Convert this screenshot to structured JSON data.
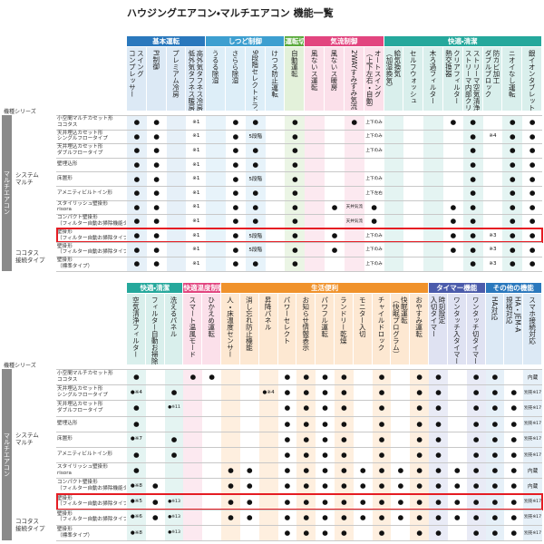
{
  "title": "ハウジングエアコン・マルチエアコン 機能一覧",
  "tables": [
    {
      "series_label": "機種シリーズ",
      "category": "マルチエアコン",
      "column_groups": [
        {
          "label": "基本運転",
          "color": "#2a78bd",
          "light": "#dce9f5",
          "columns": [
            "スイング\nコンプレッサー",
            "PI制御",
            "プレミアム冷房",
            "高外気タフネス冷房\n低外気タフネス暖房"
          ]
        },
        {
          "label": "しつど制御",
          "color": "#3d9fd0",
          "light": "#ddeef8",
          "columns": [
            "うるる除湿",
            "さらら除湿",
            "9段階セレクトドライ",
            "けつろ防止運転"
          ]
        },
        {
          "label": "運転切替",
          "color": "#5aaa3c",
          "light": "#e3f1da",
          "columns": [
            "自動運転"
          ]
        },
        {
          "label": "気流制御",
          "color": "#e2457f",
          "light": "#fbe0ea",
          "columns": [
            "風ないス運転",
            "風ないス暖房",
            "2WAYすみずみ気流",
            "オートスイング\n（上下左右・自動）"
          ]
        },
        {
          "label": "快適・清潔",
          "color": "#25a89c",
          "light": "#d9efec",
          "columns": [
            "給気換気\n（加湿換気）",
            "セルフウォッシュ",
            "木ろ過フィルター",
            "クリアフィルター\n熱交換器",
            "ストリーマ空気清浄\nストリーマ内部クリーン",
            "防カビ加工\nダブルブロック",
            "ニオイなし運転",
            "銀イオンタブレット"
          ]
        }
      ],
      "groups": [
        {
          "label": "システム\nマルチ",
          "rows": [
            {
              "label": "小空間マルチカセット形\nココタス",
              "cells": [
                "●",
                "●",
                null,
                "※1",
                null,
                "●",
                "●",
                null,
                "●",
                null,
                null,
                "●",
                "上下のみ",
                null,
                null,
                null,
                "●",
                "●",
                null,
                "●",
                "●"
              ]
            },
            {
              "label": "天井埋込カセット形\nシングルフロータイプ",
              "cells": [
                "●",
                "●",
                null,
                "※1",
                null,
                "●",
                "5段階",
                null,
                "●",
                null,
                null,
                null,
                "上下のみ",
                null,
                null,
                null,
                null,
                "●",
                "※4",
                "●",
                "●"
              ]
            },
            {
              "label": "天井埋込カセット形\nダブルフロータイプ",
              "cells": [
                "●",
                "●",
                null,
                "※1",
                null,
                "●",
                "●",
                null,
                "●",
                null,
                null,
                null,
                "上下のみ",
                null,
                null,
                null,
                null,
                "●",
                null,
                "●",
                "●"
              ]
            },
            {
              "label": "壁埋込形",
              "cells": [
                "●",
                "●",
                null,
                "※1",
                null,
                "●",
                "●",
                null,
                "●",
                null,
                null,
                null,
                null,
                null,
                null,
                null,
                null,
                "●",
                null,
                "●",
                "●"
              ]
            },
            {
              "label": "床置形",
              "cells": [
                "●",
                "●",
                null,
                "※1",
                null,
                "●",
                "5段階",
                null,
                "●",
                null,
                null,
                null,
                "上下のみ",
                null,
                null,
                null,
                null,
                "●",
                null,
                "●",
                "●"
              ]
            },
            {
              "label": "アメニティビルトイン形",
              "cells": [
                "●",
                "●",
                null,
                "※1",
                null,
                "●",
                "●",
                null,
                "●",
                null,
                null,
                null,
                "上下左右",
                null,
                null,
                null,
                null,
                "●",
                null,
                "●",
                "●"
              ]
            },
            {
              "label": "スタイリッシュ壁掛形\nrisora",
              "cells": [
                "●",
                "●",
                null,
                "※1",
                null,
                "●",
                "●",
                null,
                "●",
                null,
                "●",
                "天井気流",
                "●",
                null,
                null,
                null,
                "●",
                "●",
                null,
                "●",
                "●"
              ]
            },
            {
              "label": "コンパクト壁掛形\n（フィルター自動お掃除機能タイプ）",
              "cells": [
                "●",
                "●",
                null,
                "※1",
                null,
                "●",
                "●",
                null,
                "●",
                null,
                null,
                "天井気流",
                "●",
                null,
                null,
                null,
                "●",
                "●",
                null,
                "●",
                "●"
              ]
            },
            {
              "label": "壁掛形\n（フィルター自動お掃除タイプ）",
              "highlighted": true,
              "cells": [
                "●",
                "●",
                null,
                "※1",
                null,
                "●",
                "5段階",
                null,
                "●",
                null,
                "●",
                null,
                "上下のみ",
                null,
                null,
                null,
                "●",
                "●",
                "※3",
                "●",
                "●"
              ]
            }
          ]
        },
        {
          "label": "ココタス\n接続タイプ",
          "rows": [
            {
              "label": "壁掛形\n（フィルター自動お掃除タイプ）",
              "cells": [
                "●",
                "●",
                null,
                "※1",
                null,
                "●",
                "5段階",
                null,
                "●",
                null,
                "●",
                null,
                "上下のみ",
                null,
                null,
                null,
                "●",
                "●",
                "※3",
                "●",
                "●"
              ]
            },
            {
              "label": "壁掛形\n（標準タイプ）",
              "cells": [
                "●",
                "●",
                null,
                "※1",
                null,
                "●",
                "●",
                null,
                "●",
                null,
                null,
                null,
                "上下のみ",
                null,
                null,
                null,
                null,
                "●",
                "※3",
                "●",
                "●"
              ]
            }
          ]
        }
      ]
    },
    {
      "series_label": "機種シリーズ",
      "category": "マルチエアコン",
      "column_groups": [
        {
          "label": "快適・清潔",
          "color": "#25a89c",
          "light": "#d9efec",
          "columns": [
            "空気清浄フィルター",
            "フィルター自動お掃除",
            "洗えるパネル"
          ]
        },
        {
          "label": "快適温度制御",
          "color": "#e2457f",
          "light": "#fbe0ea",
          "columns": [
            "スマート温風モード",
            "ひかえめ運転"
          ]
        },
        {
          "label": "生活便利",
          "color": "#f0922b",
          "light": "#fde8d2",
          "columns": [
            "人・床温度センサー",
            "消し忘れ防止機能",
            "昇降パネル",
            "パワーセレクト",
            "お知らせ情報表示",
            "パワフル運転",
            "ランドリー乾燥",
            "モニター入切",
            "チャイルドロック",
            "快眠運転\n（快眠プログラム）",
            "おやすみ運転"
          ]
        },
        {
          "label": "タイマー機能",
          "color": "#4b5bab",
          "light": "#dfe2f2",
          "columns": [
            "時刻設定\n入切タイマー",
            "ワンタッチ入タイマー",
            "ワンタッチ切タイマー"
          ]
        },
        {
          "label": "その他の機能",
          "color": "#2a78bd",
          "light": "#dce9f5",
          "columns": [
            "HA対応",
            "HA・JEM-A\n規格対応",
            "スマホ接続対応"
          ]
        }
      ],
      "groups": [
        {
          "label": "システム\nマルチ",
          "rows": [
            {
              "label": "小空間マルチカセット形\nココタス",
              "cells": [
                "●",
                null,
                null,
                "●",
                "●",
                null,
                null,
                null,
                "●",
                "●",
                "●",
                "●",
                null,
                "●",
                null,
                "●",
                "●",
                null,
                "●",
                "●",
                null,
                "内蔵"
              ]
            },
            {
              "label": "天井埋込カセット形\nシングルフロータイプ",
              "cells": [
                "●※4",
                null,
                "●",
                null,
                null,
                null,
                null,
                "●※4",
                "●",
                "●",
                "●",
                "●",
                null,
                "●",
                null,
                "●",
                "●",
                null,
                "●",
                "●",
                "●",
                "別売※17"
              ]
            },
            {
              "label": "天井埋込カセット形\nダブルフロータイプ",
              "cells": [
                "●",
                null,
                "●※11",
                null,
                null,
                null,
                null,
                null,
                "●",
                "●",
                "●",
                "●",
                null,
                "●",
                null,
                "●",
                "●",
                null,
                "●",
                "●",
                "●",
                "別売※17"
              ]
            },
            {
              "label": "壁埋込形",
              "cells": [
                "●",
                null,
                null,
                null,
                null,
                null,
                null,
                null,
                "●",
                "●",
                "●",
                "●",
                null,
                "●",
                null,
                "●",
                "●",
                null,
                "●",
                "●",
                "●",
                "別売※17"
              ]
            },
            {
              "label": "床置形",
              "cells": [
                "●※7",
                null,
                "●",
                null,
                null,
                null,
                null,
                null,
                "●",
                "●",
                "●",
                "●",
                null,
                "●",
                null,
                "●",
                "●",
                null,
                "●",
                "●",
                "●",
                "別売※17"
              ]
            },
            {
              "label": "アメニティビルトイン形",
              "cells": [
                "●",
                null,
                "●",
                null,
                null,
                null,
                null,
                null,
                "●",
                "●",
                "●",
                "●",
                null,
                "●",
                null,
                "●",
                "●",
                null,
                "●",
                "●",
                "●",
                "別売※17"
              ]
            },
            {
              "label": "スタイリッシュ壁掛形\nrisora",
              "cells": [
                "●",
                null,
                null,
                null,
                null,
                "●",
                "●",
                null,
                "●",
                "●",
                "●",
                "●",
                "●",
                "●",
                "●",
                "●",
                "●",
                "●",
                "●",
                "●",
                "●",
                "内蔵"
              ]
            },
            {
              "label": "コンパクト壁掛形\n（フィルター自動お掃除機能タイプ）",
              "cells": [
                "●※8",
                "●",
                null,
                null,
                null,
                "●",
                "●",
                null,
                "●",
                "●",
                "●",
                "●",
                "●",
                "●",
                "●",
                "●",
                "●",
                "●",
                "●",
                "●",
                "●",
                "内蔵"
              ]
            },
            {
              "label": "壁掛形\n（フィルター自動お掃除タイプ）",
              "highlighted": true,
              "cells": [
                "●※5",
                "●",
                "●※13",
                null,
                null,
                "●",
                "●",
                null,
                "●",
                "●",
                "●",
                "●",
                "●",
                "●",
                "●",
                "●",
                "●",
                "●",
                "●",
                "●",
                "●",
                "別売※17"
              ]
            }
          ]
        },
        {
          "label": "ココタス\n接続タイプ",
          "rows": [
            {
              "label": "壁掛形\n（フィルター自動お掃除タイプ）",
              "cells": [
                "●※6",
                "●",
                "●※13",
                null,
                null,
                "●",
                "●",
                null,
                "●",
                "●",
                "●",
                "●",
                "●",
                "●",
                "●",
                "●",
                "●",
                "●",
                "●",
                "●",
                "●",
                "別売※17"
              ]
            },
            {
              "label": "壁掛形\n（標準タイプ）",
              "cells": [
                "●※8",
                null,
                "●※13",
                null,
                null,
                null,
                null,
                null,
                "●",
                "●",
                "●",
                "●",
                null,
                "●",
                null,
                "●",
                "●",
                null,
                "●",
                "●",
                "●",
                "別売※17"
              ]
            }
          ]
        }
      ]
    }
  ]
}
